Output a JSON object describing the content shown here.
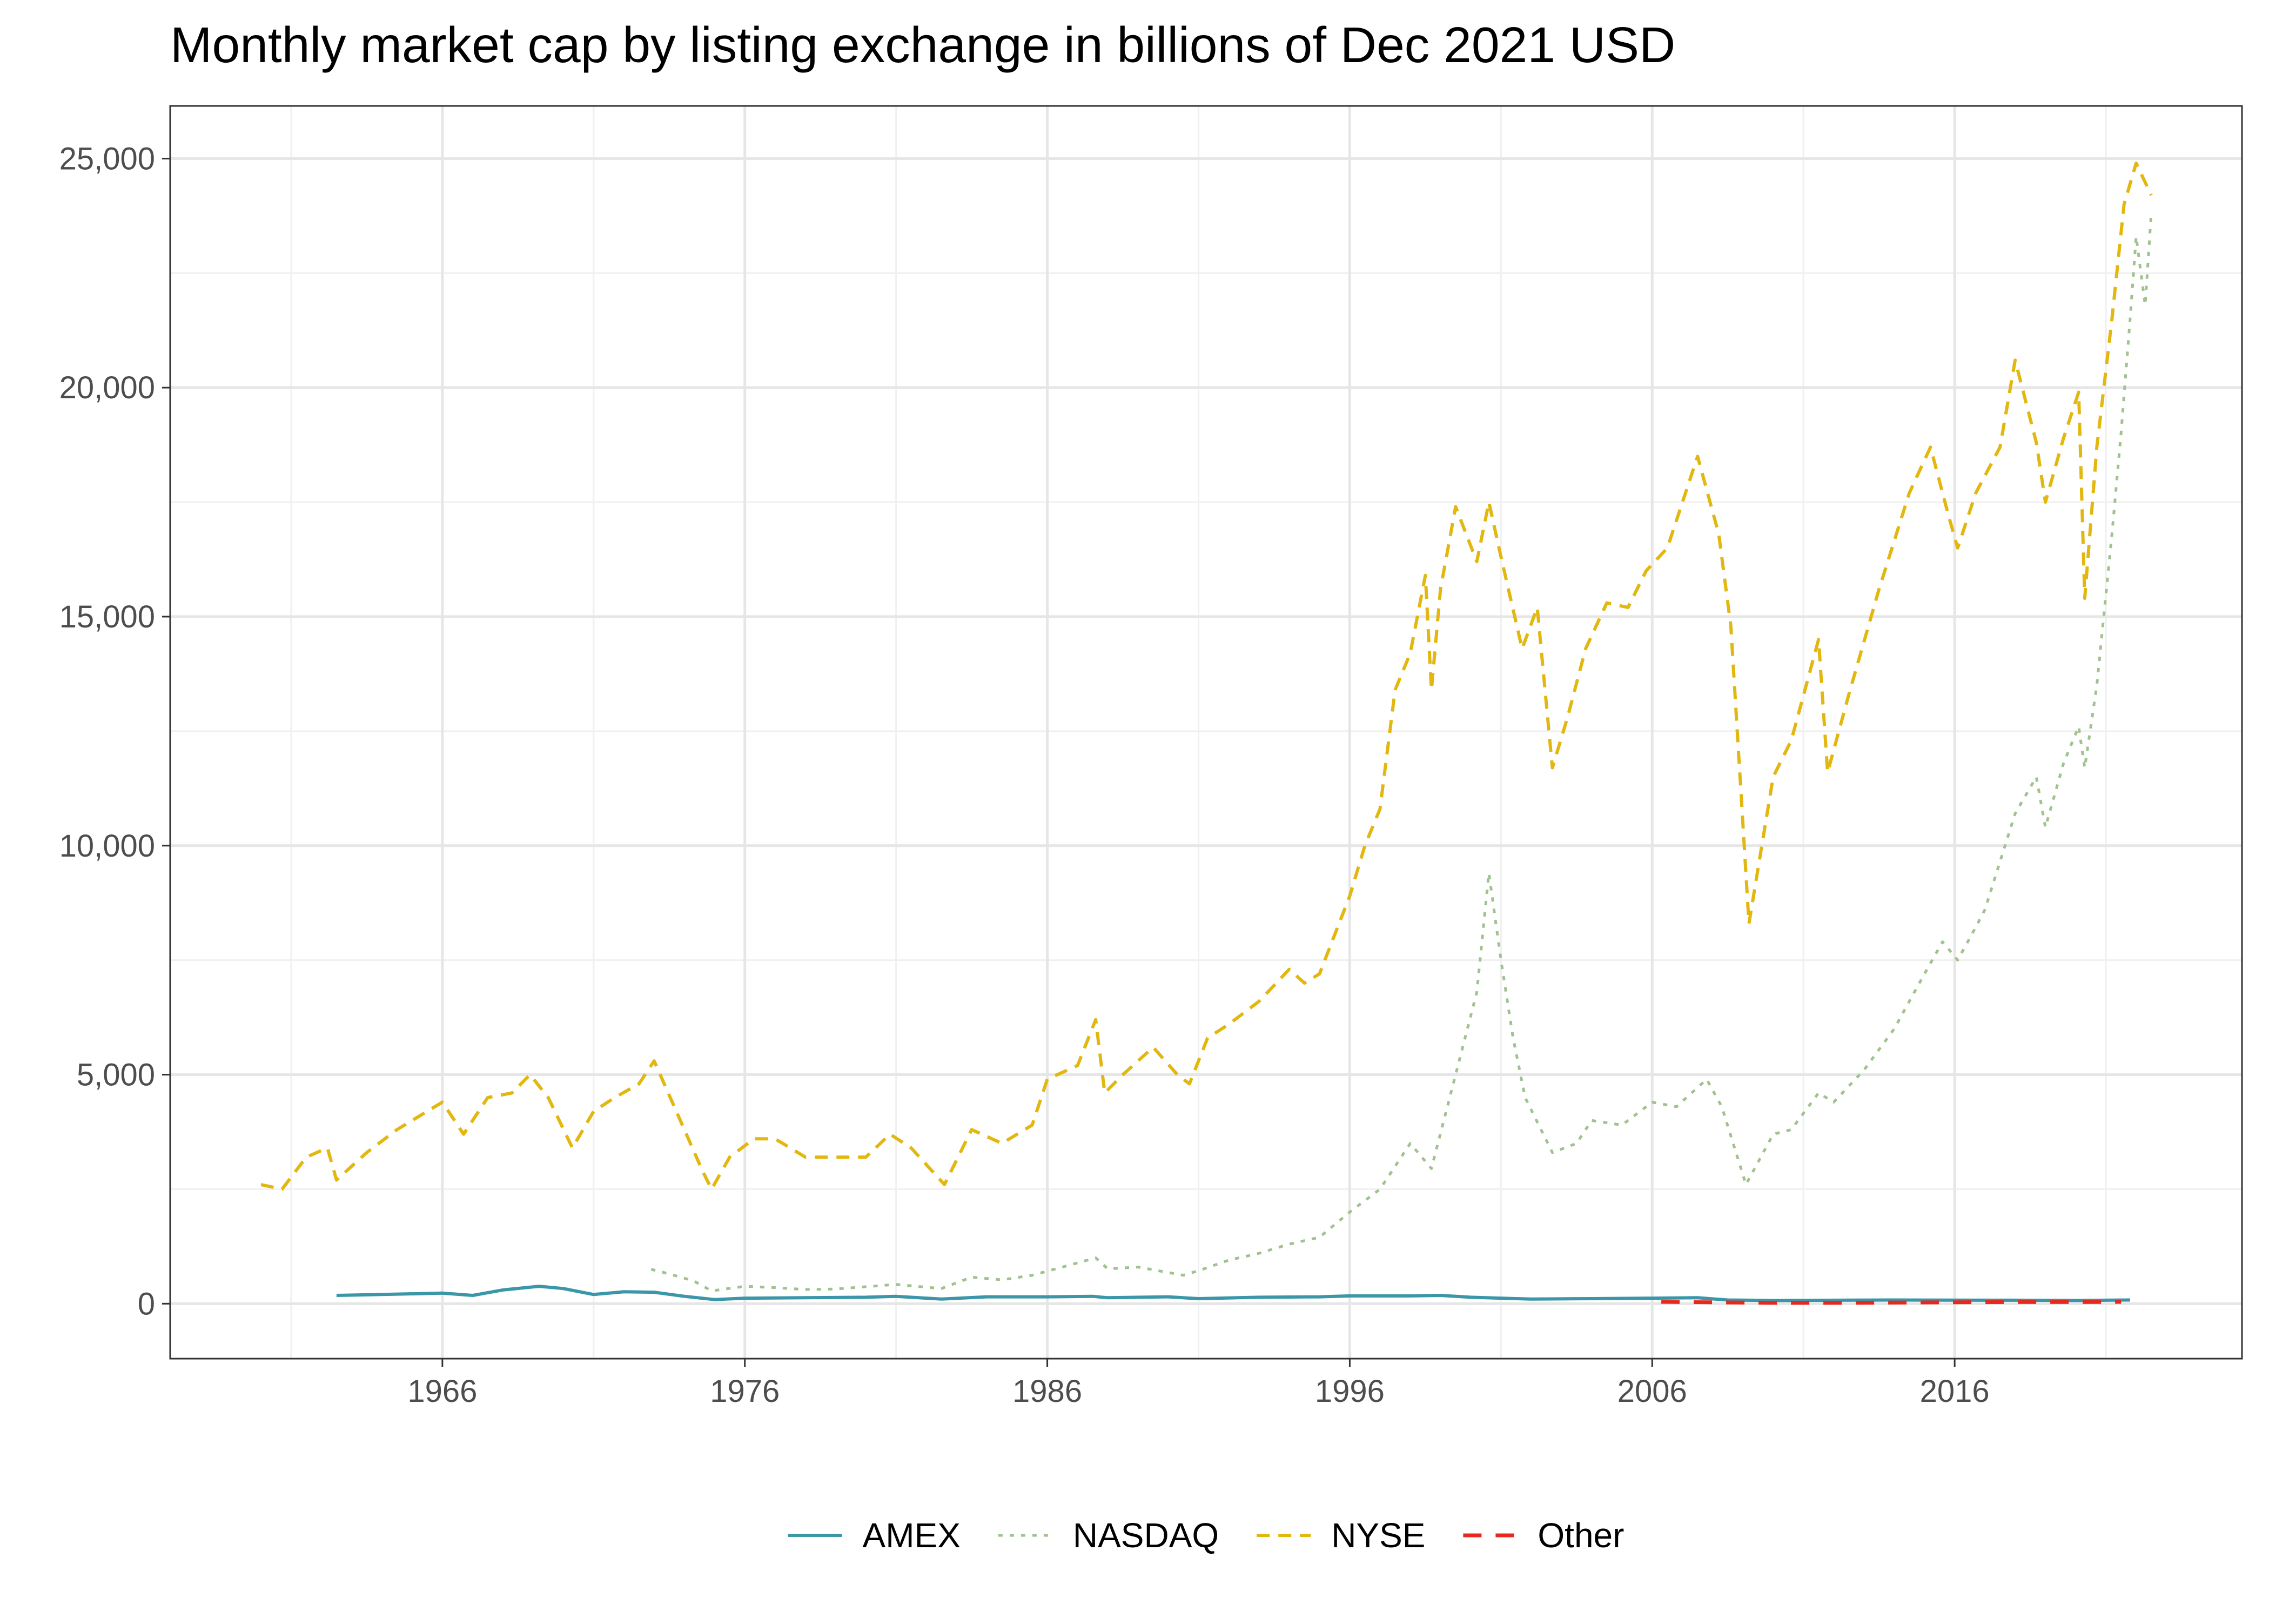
{
  "chart_data": {
    "type": "line",
    "title": "Monthly market cap by listing exchange in billions of Dec 2021 USD",
    "xlabel": "",
    "ylabel": "",
    "xlim": [
      1957.0,
      2025.5
    ],
    "ylim": [
      -1200,
      26150
    ],
    "x_ticks": [
      1966,
      1976,
      1986,
      1996,
      2006,
      2016
    ],
    "x_tick_labels": [
      "1966",
      "1976",
      "1986",
      "1996",
      "2006",
      "2016"
    ],
    "y_ticks": [
      0,
      5000,
      10000,
      15000,
      20000,
      25000
    ],
    "y_tick_labels": [
      "0",
      "5,000",
      "10,000",
      "15,000",
      "20,000",
      "25,000"
    ],
    "grid": true,
    "legend_position": "bottom",
    "series": [
      {
        "name": "AMEX",
        "color": "#3a96a8",
        "dash": "solid",
        "points": [
          [
            1962.5,
            180
          ],
          [
            1964,
            200
          ],
          [
            1966,
            230
          ],
          [
            1967,
            180
          ],
          [
            1968,
            300
          ],
          [
            1969.2,
            380
          ],
          [
            1970,
            330
          ],
          [
            1971,
            200
          ],
          [
            1972,
            260
          ],
          [
            1973,
            250
          ],
          [
            1974,
            160
          ],
          [
            1975,
            90
          ],
          [
            1976,
            120
          ],
          [
            1978,
            130
          ],
          [
            1980,
            140
          ],
          [
            1981,
            160
          ],
          [
            1982.5,
            100
          ],
          [
            1984,
            150
          ],
          [
            1986,
            150
          ],
          [
            1987.5,
            160
          ],
          [
            1988,
            130
          ],
          [
            1990,
            150
          ],
          [
            1991,
            110
          ],
          [
            1993,
            140
          ],
          [
            1995,
            150
          ],
          [
            1996,
            170
          ],
          [
            1998,
            170
          ],
          [
            1999,
            180
          ],
          [
            2000,
            140
          ],
          [
            2002,
            100
          ],
          [
            2004,
            110
          ],
          [
            2006,
            120
          ],
          [
            2007.5,
            130
          ],
          [
            2008.5,
            80
          ],
          [
            2010,
            70
          ],
          [
            2014,
            80
          ],
          [
            2018,
            75
          ],
          [
            2020,
            70
          ],
          [
            2021.8,
            80
          ]
        ]
      },
      {
        "name": "NASDAQ",
        "color": "#9fc28f",
        "dash": "dotted",
        "points": [
          [
            1972.9,
            750
          ],
          [
            1973.5,
            650
          ],
          [
            1974.3,
            500
          ],
          [
            1974.9,
            280
          ],
          [
            1976,
            380
          ],
          [
            1977,
            350
          ],
          [
            1978,
            310
          ],
          [
            1979,
            320
          ],
          [
            1980,
            370
          ],
          [
            1981,
            420
          ],
          [
            1982.5,
            330
          ],
          [
            1983.5,
            580
          ],
          [
            1984.5,
            520
          ],
          [
            1985.5,
            620
          ],
          [
            1986.5,
            800
          ],
          [
            1987.6,
            1000
          ],
          [
            1988,
            760
          ],
          [
            1989,
            800
          ],
          [
            1990.5,
            620
          ],
          [
            1991,
            720
          ],
          [
            1992,
            950
          ],
          [
            1993,
            1100
          ],
          [
            1994,
            1300
          ],
          [
            1995,
            1450
          ],
          [
            1996,
            2000
          ],
          [
            1997,
            2500
          ],
          [
            1998,
            3500
          ],
          [
            1998.7,
            2950
          ],
          [
            1999.5,
            5000
          ],
          [
            2000.2,
            6800
          ],
          [
            2000.6,
            9400
          ],
          [
            2001.0,
            7500
          ],
          [
            2001.4,
            5800
          ],
          [
            2001.8,
            4500
          ],
          [
            2002.7,
            3300
          ],
          [
            2003.5,
            3500
          ],
          [
            2004,
            4000
          ],
          [
            2005,
            3900
          ],
          [
            2006,
            4400
          ],
          [
            2006.8,
            4300
          ],
          [
            2007.8,
            4900
          ],
          [
            2008.3,
            4300
          ],
          [
            2009.1,
            2600
          ],
          [
            2010,
            3700
          ],
          [
            2010.6,
            3800
          ],
          [
            2011.5,
            4600
          ],
          [
            2012,
            4400
          ],
          [
            2013,
            5100
          ],
          [
            2014,
            6000
          ],
          [
            2015,
            7200
          ],
          [
            2015.6,
            7900
          ],
          [
            2016.1,
            7500
          ],
          [
            2016.6,
            8100
          ],
          [
            2017,
            8600
          ],
          [
            2018,
            10700
          ],
          [
            2018.7,
            11500
          ],
          [
            2019.0,
            10400
          ],
          [
            2019.6,
            11800
          ],
          [
            2020.1,
            12600
          ],
          [
            2020.3,
            11700
          ],
          [
            2020.7,
            13500
          ],
          [
            2021.2,
            16800
          ],
          [
            2021.5,
            19000
          ],
          [
            2021.8,
            21500
          ],
          [
            2022.0,
            23300
          ],
          [
            2022.3,
            21800
          ],
          [
            2022.5,
            23800
          ]
        ]
      },
      {
        "name": "NYSE",
        "color": "#e2b70f",
        "dash": "dashed",
        "points": [
          [
            1960.0,
            2600
          ],
          [
            1960.7,
            2500
          ],
          [
            1961.5,
            3200
          ],
          [
            1962.2,
            3400
          ],
          [
            1962.5,
            2700
          ],
          [
            1963.5,
            3300
          ],
          [
            1964.5,
            3800
          ],
          [
            1965.5,
            4200
          ],
          [
            1966.0,
            4400
          ],
          [
            1966.7,
            3700
          ],
          [
            1967.5,
            4500
          ],
          [
            1968.3,
            4600
          ],
          [
            1968.9,
            5000
          ],
          [
            1969.5,
            4500
          ],
          [
            1970.3,
            3400
          ],
          [
            1971.0,
            4200
          ],
          [
            1971.7,
            4500
          ],
          [
            1972.5,
            4800
          ],
          [
            1973.0,
            5300
          ],
          [
            1973.8,
            4100
          ],
          [
            1974.6,
            2900
          ],
          [
            1974.9,
            2500
          ],
          [
            1975.5,
            3200
          ],
          [
            1976.3,
            3600
          ],
          [
            1977.0,
            3600
          ],
          [
            1978.0,
            3200
          ],
          [
            1979.0,
            3200
          ],
          [
            1980.0,
            3200
          ],
          [
            1980.8,
            3700
          ],
          [
            1981.5,
            3400
          ],
          [
            1982.6,
            2600
          ],
          [
            1983.5,
            3800
          ],
          [
            1984.5,
            3500
          ],
          [
            1985.5,
            3900
          ],
          [
            1986.0,
            4900
          ],
          [
            1987.0,
            5200
          ],
          [
            1987.6,
            6200
          ],
          [
            1987.9,
            4600
          ],
          [
            1988.5,
            5000
          ],
          [
            1989.5,
            5600
          ],
          [
            1990.3,
            5000
          ],
          [
            1990.7,
            4800
          ],
          [
            1991.3,
            5800
          ],
          [
            1992,
            6100
          ],
          [
            1993,
            6600
          ],
          [
            1994,
            7300
          ],
          [
            1994.5,
            7000
          ],
          [
            1995,
            7200
          ],
          [
            1996.0,
            8900
          ],
          [
            1996.5,
            10000
          ],
          [
            1997.0,
            10800
          ],
          [
            1997.5,
            13400
          ],
          [
            1998.0,
            14200
          ],
          [
            1998.5,
            15900
          ],
          [
            1998.7,
            13400
          ],
          [
            1999.0,
            15600
          ],
          [
            1999.5,
            17400
          ],
          [
            2000.2,
            16200
          ],
          [
            2000.6,
            17500
          ],
          [
            2001.0,
            16300
          ],
          [
            2001.7,
            14300
          ],
          [
            2002.2,
            15200
          ],
          [
            2002.7,
            11700
          ],
          [
            2003.2,
            12800
          ],
          [
            2003.8,
            14300
          ],
          [
            2004.5,
            15300
          ],
          [
            2005.2,
            15200
          ],
          [
            2005.8,
            16000
          ],
          [
            2006.5,
            16500
          ],
          [
            2007.5,
            18500
          ],
          [
            2008.2,
            16800
          ],
          [
            2008.6,
            14800
          ],
          [
            2009.2,
            8300
          ],
          [
            2010.0,
            11500
          ],
          [
            2010.6,
            12300
          ],
          [
            2011.5,
            14500
          ],
          [
            2011.8,
            11600
          ],
          [
            2012.5,
            13300
          ],
          [
            2013.5,
            15600
          ],
          [
            2014.5,
            17700
          ],
          [
            2015.2,
            18700
          ],
          [
            2015.8,
            17200
          ],
          [
            2016.1,
            16500
          ],
          [
            2016.7,
            17700
          ],
          [
            2017.5,
            18700
          ],
          [
            2018.0,
            20600
          ],
          [
            2018.7,
            18800
          ],
          [
            2019.0,
            17500
          ],
          [
            2019.6,
            18900
          ],
          [
            2020.1,
            19900
          ],
          [
            2020.3,
            15400
          ],
          [
            2020.7,
            18700
          ],
          [
            2021.2,
            21500
          ],
          [
            2021.6,
            24000
          ],
          [
            2022.0,
            24900
          ],
          [
            2022.5,
            24200
          ]
        ]
      },
      {
        "name": "Other",
        "color": "#e8281c",
        "dash": "longdash",
        "points": [
          [
            2006.3,
            40
          ],
          [
            2008,
            30
          ],
          [
            2010,
            20
          ],
          [
            2012,
            20
          ],
          [
            2014,
            25
          ],
          [
            2016,
            30
          ],
          [
            2018,
            35
          ],
          [
            2020,
            35
          ],
          [
            2021.5,
            40
          ]
        ]
      }
    ]
  }
}
